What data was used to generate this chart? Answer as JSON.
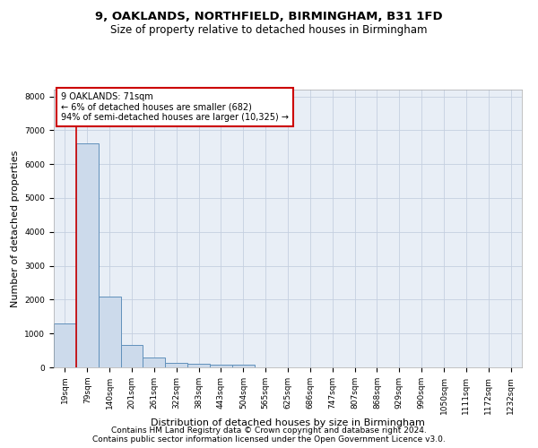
{
  "title1": "9, OAKLANDS, NORTHFIELD, BIRMINGHAM, B31 1FD",
  "title2": "Size of property relative to detached houses in Birmingham",
  "xlabel": "Distribution of detached houses by size in Birmingham",
  "ylabel": "Number of detached properties",
  "footer1": "Contains HM Land Registry data © Crown copyright and database right 2024.",
  "footer2": "Contains public sector information licensed under the Open Government Licence v3.0.",
  "bin_labels": [
    "19sqm",
    "79sqm",
    "140sqm",
    "201sqm",
    "261sqm",
    "322sqm",
    "383sqm",
    "443sqm",
    "504sqm",
    "565sqm",
    "625sqm",
    "686sqm",
    "747sqm",
    "807sqm",
    "868sqm",
    "929sqm",
    "990sqm",
    "1050sqm",
    "1111sqm",
    "1172sqm",
    "1232sqm"
  ],
  "bar_heights": [
    1300,
    6600,
    2080,
    650,
    300,
    140,
    100,
    70,
    70,
    0,
    0,
    0,
    0,
    0,
    0,
    0,
    0,
    0,
    0,
    0,
    0
  ],
  "bar_color": "#ccdaeb",
  "bar_edge_color": "#6090bb",
  "annotation_text": "9 OAKLANDS: 71sqm\n← 6% of detached houses are smaller (682)\n94% of semi-detached houses are larger (10,325) →",
  "red_line_color": "#cc0000",
  "annotation_box_facecolor": "#ffffff",
  "annotation_box_edgecolor": "#cc0000",
  "ylim": [
    0,
    8200
  ],
  "yticks": [
    0,
    1000,
    2000,
    3000,
    4000,
    5000,
    6000,
    7000,
    8000
  ],
  "grid_color": "#c5cfe0",
  "bg_color": "#e8eef6",
  "title1_fontsize": 9.5,
  "title2_fontsize": 8.5,
  "xlabel_fontsize": 8,
  "ylabel_fontsize": 8,
  "tick_fontsize": 6.5,
  "ann_fontsize": 7,
  "footer_fontsize": 6.5
}
